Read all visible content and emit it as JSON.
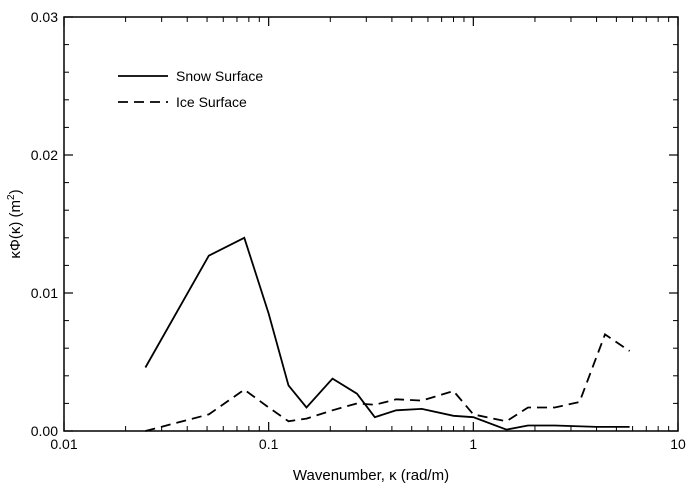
{
  "chart_data": {
    "type": "line",
    "xscale": "log",
    "xlim": [
      0.01,
      10
    ],
    "ylim": [
      0,
      0.03
    ],
    "grid": false,
    "legend_position": "top-left",
    "xlabel": "Wavenumber, κ (rad/m)",
    "ylabel": {
      "prefix": "κΦ(κ) (m",
      "superscript": "2",
      "suffix": ")"
    },
    "x_ticks": [
      {
        "value": 0.01,
        "label": "0.01"
      },
      {
        "value": 0.1,
        "label": "0.1"
      },
      {
        "value": 1,
        "label": "1"
      },
      {
        "value": 10,
        "label": "10"
      }
    ],
    "y_ticks": [
      {
        "value": 0,
        "label": "0.00"
      },
      {
        "value": 0.01,
        "label": "0.01"
      },
      {
        "value": 0.02,
        "label": "0.02"
      },
      {
        "value": 0.03,
        "label": "0.03"
      }
    ],
    "series": [
      {
        "name": "Snow Surface",
        "style": "solid",
        "color": "#000000",
        "x": [
          0.025,
          0.051,
          0.076,
          0.1,
          0.125,
          0.153,
          0.205,
          0.27,
          0.33,
          0.42,
          0.56,
          0.8,
          1.0,
          1.45,
          1.85,
          2.5,
          4.0,
          5.8
        ],
        "y": [
          0.0046,
          0.0127,
          0.014,
          0.0085,
          0.0033,
          0.0017,
          0.0038,
          0.0027,
          0.001,
          0.0015,
          0.0016,
          0.0011,
          0.001,
          0.0001,
          0.0004,
          0.0004,
          0.0003,
          0.0003
        ]
      },
      {
        "name": "Ice Surface",
        "style": "dashed",
        "color": "#000000",
        "x": [
          0.025,
          0.051,
          0.076,
          0.1,
          0.125,
          0.153,
          0.205,
          0.27,
          0.33,
          0.42,
          0.56,
          0.8,
          1.0,
          1.45,
          1.85,
          2.5,
          3.3,
          4.4,
          5.8
        ],
        "y": [
          0.0,
          0.0012,
          0.003,
          0.0017,
          0.0007,
          0.0009,
          0.0015,
          0.002,
          0.0019,
          0.0023,
          0.0022,
          0.0029,
          0.0012,
          0.0007,
          0.0017,
          0.0017,
          0.0021,
          0.007,
          0.0058
        ]
      }
    ]
  }
}
